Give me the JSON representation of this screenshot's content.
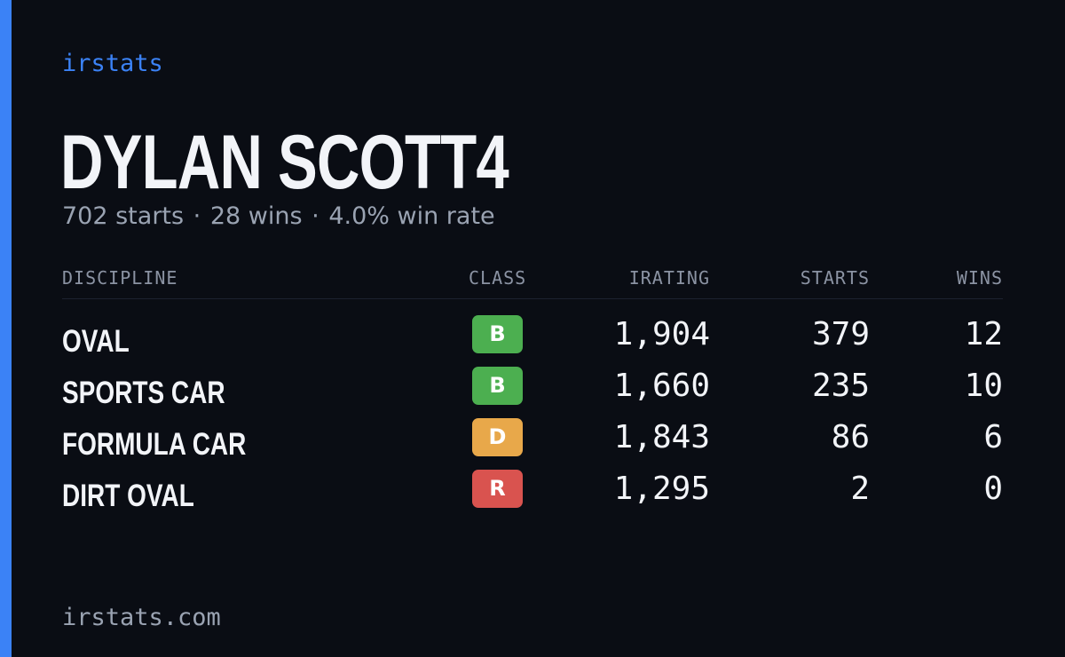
{
  "brand": "irstats",
  "player": {
    "name": "DYLAN SCOTT4"
  },
  "summary": {
    "starts": "702 starts",
    "wins": "28 wins",
    "win_rate": "4.0% win rate",
    "separator": "·"
  },
  "table": {
    "headers": {
      "discipline": "DISCIPLINE",
      "class": "CLASS",
      "irating": "IRATING",
      "starts": "STARTS",
      "wins": "WINS"
    },
    "rows": [
      {
        "discipline": "OVAL",
        "class": "B",
        "class_color": "#4caf50",
        "irating": "1,904",
        "starts": "379",
        "wins": "12"
      },
      {
        "discipline": "SPORTS CAR",
        "class": "B",
        "class_color": "#4caf50",
        "irating": "1,660",
        "starts": "235",
        "wins": "10"
      },
      {
        "discipline": "FORMULA CAR",
        "class": "D",
        "class_color": "#e8a84a",
        "irating": "1,843",
        "starts": "86",
        "wins": "6"
      },
      {
        "discipline": "DIRT OVAL",
        "class": "R",
        "class_color": "#d9534f",
        "irating": "1,295",
        "starts": "2",
        "wins": "0"
      }
    ]
  },
  "footer": {
    "url": "irstats.com"
  },
  "colors": {
    "accent": "#3b82f6",
    "background": "#0a0d14",
    "text": "#f2f4f8",
    "muted": "#9aa3b2"
  }
}
